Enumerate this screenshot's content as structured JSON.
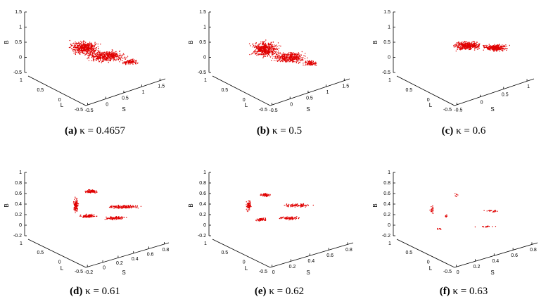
{
  "figure": {
    "axis_titles": {
      "b": "B",
      "l": "L",
      "s": "S"
    },
    "panels": [
      {
        "label": "(a)",
        "caption": "κ = 0.4657",
        "b_ticks": [
          "1.5",
          "1",
          "0.5",
          "0",
          "-0.5"
        ],
        "l_ticks": [
          "1",
          "0.5",
          "0",
          "-0.5"
        ],
        "s_ticks": [
          "-0.5",
          "0",
          "0.5",
          "1",
          "1.5"
        ]
      },
      {
        "label": "(b)",
        "caption": "κ = 0.5",
        "b_ticks": [
          "1.5",
          "1",
          "0.5",
          "0",
          "-0.5"
        ],
        "l_ticks": [
          "1",
          "0.5",
          "0",
          "-0.5"
        ],
        "s_ticks": [
          "-0.5",
          "0",
          "0.5",
          "1",
          "1.5"
        ]
      },
      {
        "label": "(c)",
        "caption": "κ = 0.6",
        "b_ticks": [
          "1.5",
          "1",
          "0.5",
          "0",
          "-0.5"
        ],
        "l_ticks": [
          "1",
          "0.5",
          "0",
          "-0.5"
        ],
        "s_ticks": [
          "-0.5",
          "0",
          "0.5",
          "1"
        ]
      },
      {
        "label": "(d)",
        "caption": "κ = 0.61",
        "b_ticks": [
          "1",
          "0.8",
          "0.6",
          "0.4",
          "0.2",
          "0",
          "-0.2"
        ],
        "l_ticks": [
          "1",
          "0.5",
          "0",
          "-0.5"
        ],
        "s_ticks": [
          "-0.2",
          "0",
          "0.2",
          "0.4",
          "0.6",
          "0.8"
        ]
      },
      {
        "label": "(e)",
        "caption": "κ = 0.62",
        "b_ticks": [
          "1",
          "0.8",
          "0.6",
          "0.4",
          "0.2",
          "0",
          "-0.2"
        ],
        "l_ticks": [
          "1",
          "0.5",
          "0",
          "-0.5"
        ],
        "s_ticks": [
          "0",
          "0.2",
          "0.4",
          "0.6",
          "0.8"
        ]
      },
      {
        "label": "(f)",
        "caption": "κ = 0.63",
        "b_ticks": [
          "1",
          "0.8",
          "0.6",
          "0.4",
          "0.2",
          "0",
          "-0.2"
        ],
        "l_ticks": [
          "1",
          "0.5",
          "0",
          "-0.5"
        ],
        "s_ticks": [
          "0",
          "0.2",
          "0.4",
          "0.6",
          "0.8"
        ]
      }
    ]
  }
}
